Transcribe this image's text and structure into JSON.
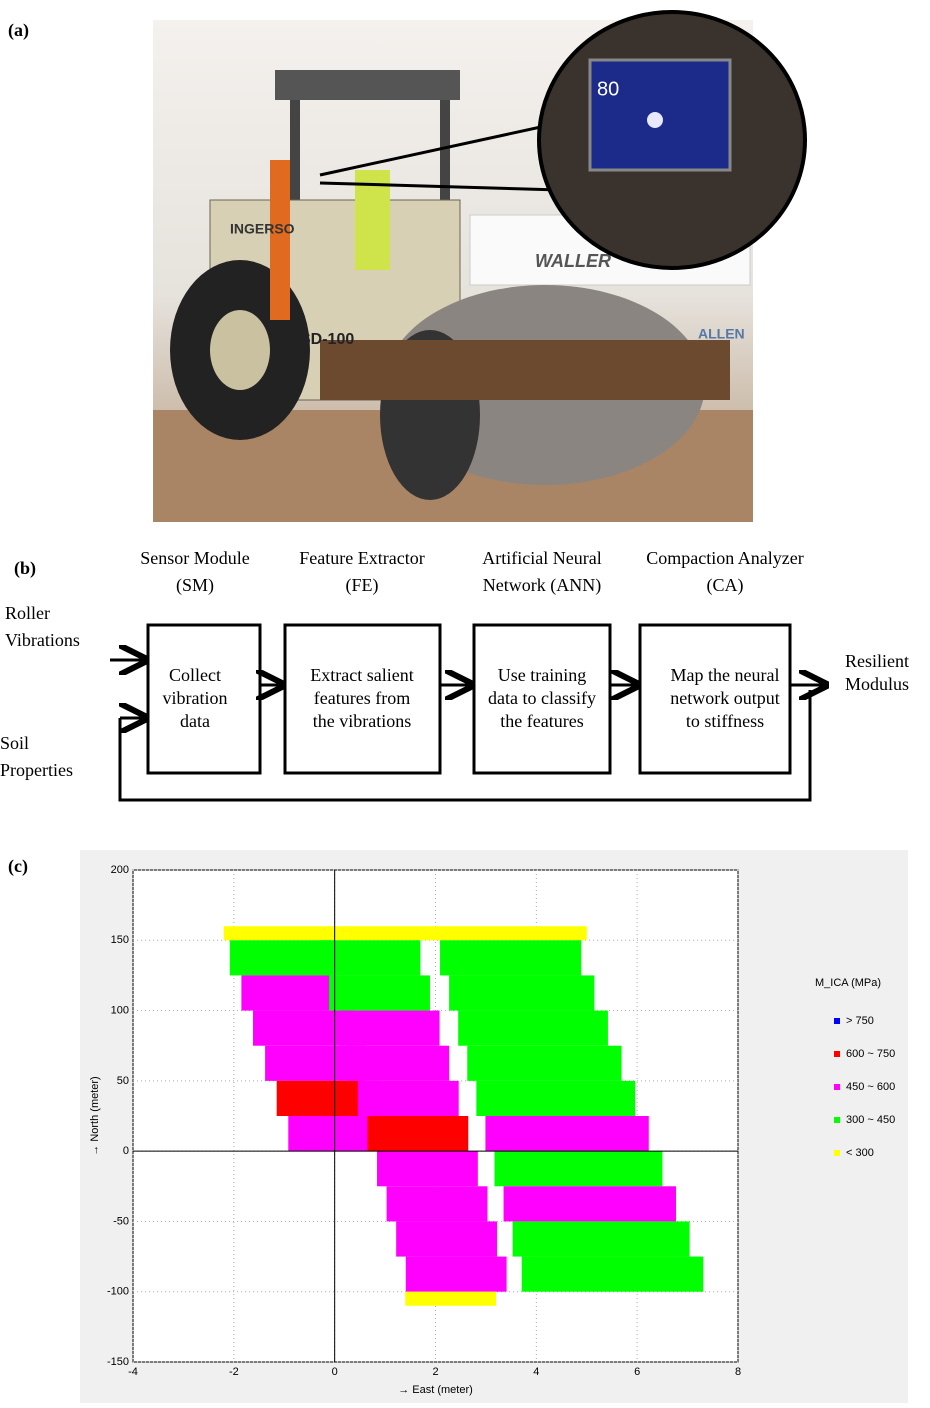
{
  "panel_labels": [
    "(a)",
    "(b)",
    "(c)"
  ],
  "photo": {
    "screen_reading": "80",
    "texts": [
      "INGERSO",
      "SD-100",
      "WALLER",
      "ALLEN"
    ]
  },
  "diagram": {
    "inputs": [
      [
        "Roller",
        "Vibrations"
      ],
      [
        "Soil",
        "Properties"
      ]
    ],
    "stages": [
      {
        "title": [
          "Sensor Module",
          "(SM)"
        ],
        "box": [
          "Collect",
          "vibration",
          "data"
        ]
      },
      {
        "title": [
          "Feature Extractor",
          "(FE)"
        ],
        "box": [
          "Extract salient",
          "features from",
          "the vibrations"
        ]
      },
      {
        "title": [
          "Artificial Neural",
          "Network (ANN)"
        ],
        "box": [
          "Use training",
          "data to classify",
          "the features"
        ]
      },
      {
        "title": [
          "Compaction Analyzer",
          "(CA)"
        ],
        "box": [
          "Map the neural",
          "network output",
          "to stiffness"
        ]
      }
    ],
    "output": [
      "Resilient",
      "Modulus"
    ]
  },
  "chart_data": {
    "type": "map",
    "xlabel": "→ East (meter)",
    "ylabel": "→ North (meter)",
    "xlim": [
      -4,
      8
    ],
    "xticks": [
      -4,
      -2,
      0,
      2,
      4,
      6,
      8
    ],
    "ylim": [
      -150,
      200
    ],
    "yticks": [
      -150,
      -100,
      -50,
      0,
      50,
      100,
      150,
      200
    ],
    "grid": true,
    "legend_title": "M_ICA (MPa)",
    "series": [
      {
        "name": "> 750",
        "color": "#0000ff"
      },
      {
        "name": "600 ~ 750",
        "color": "#ff0000"
      },
      {
        "name": "450 ~ 600",
        "color": "#ff00ff"
      },
      {
        "name": "300 ~ 450",
        "color": "#00ff00"
      },
      {
        "name": "< 300",
        "color": "#ffff00"
      }
    ],
    "cells": [
      [
        160,
        150,
        -2.2,
        5.0,
        4
      ],
      [
        150,
        125,
        -2.08,
        -0.08,
        3
      ],
      [
        125,
        100,
        -1.85,
        0.15,
        2
      ],
      [
        100,
        75,
        -1.62,
        0.38,
        2
      ],
      [
        75,
        50,
        -1.38,
        0.62,
        2
      ],
      [
        50,
        25,
        -1.15,
        0.85,
        1
      ],
      [
        25,
        0,
        -0.92,
        1.08,
        2
      ],
      [
        150,
        125,
        -0.3,
        1.7,
        3
      ],
      [
        125,
        100,
        -0.11,
        1.89,
        3
      ],
      [
        100,
        75,
        0.08,
        2.08,
        2
      ],
      [
        75,
        50,
        0.27,
        2.27,
        2
      ],
      [
        50,
        25,
        0.46,
        2.46,
        2
      ],
      [
        25,
        0,
        0.65,
        2.65,
        1
      ],
      [
        0,
        -25,
        0.84,
        2.84,
        2
      ],
      [
        -25,
        -50,
        1.03,
        3.03,
        2
      ],
      [
        -50,
        -75,
        1.22,
        3.22,
        2
      ],
      [
        -75,
        -100,
        1.41,
        3.41,
        2
      ],
      [
        -100,
        -110,
        1.4,
        3.2,
        4
      ],
      [
        150,
        125,
        2.09,
        4.89,
        3
      ],
      [
        125,
        100,
        2.27,
        5.15,
        3
      ],
      [
        100,
        75,
        2.45,
        5.42,
        3
      ],
      [
        75,
        50,
        2.63,
        5.69,
        3
      ],
      [
        50,
        25,
        2.81,
        5.96,
        3
      ],
      [
        25,
        0,
        2.99,
        6.23,
        2
      ],
      [
        0,
        -25,
        3.17,
        6.5,
        3
      ],
      [
        -25,
        -50,
        3.35,
        6.77,
        2
      ],
      [
        -50,
        -75,
        3.53,
        7.04,
        3
      ],
      [
        -75,
        -100,
        3.71,
        7.31,
        3
      ]
    ]
  }
}
